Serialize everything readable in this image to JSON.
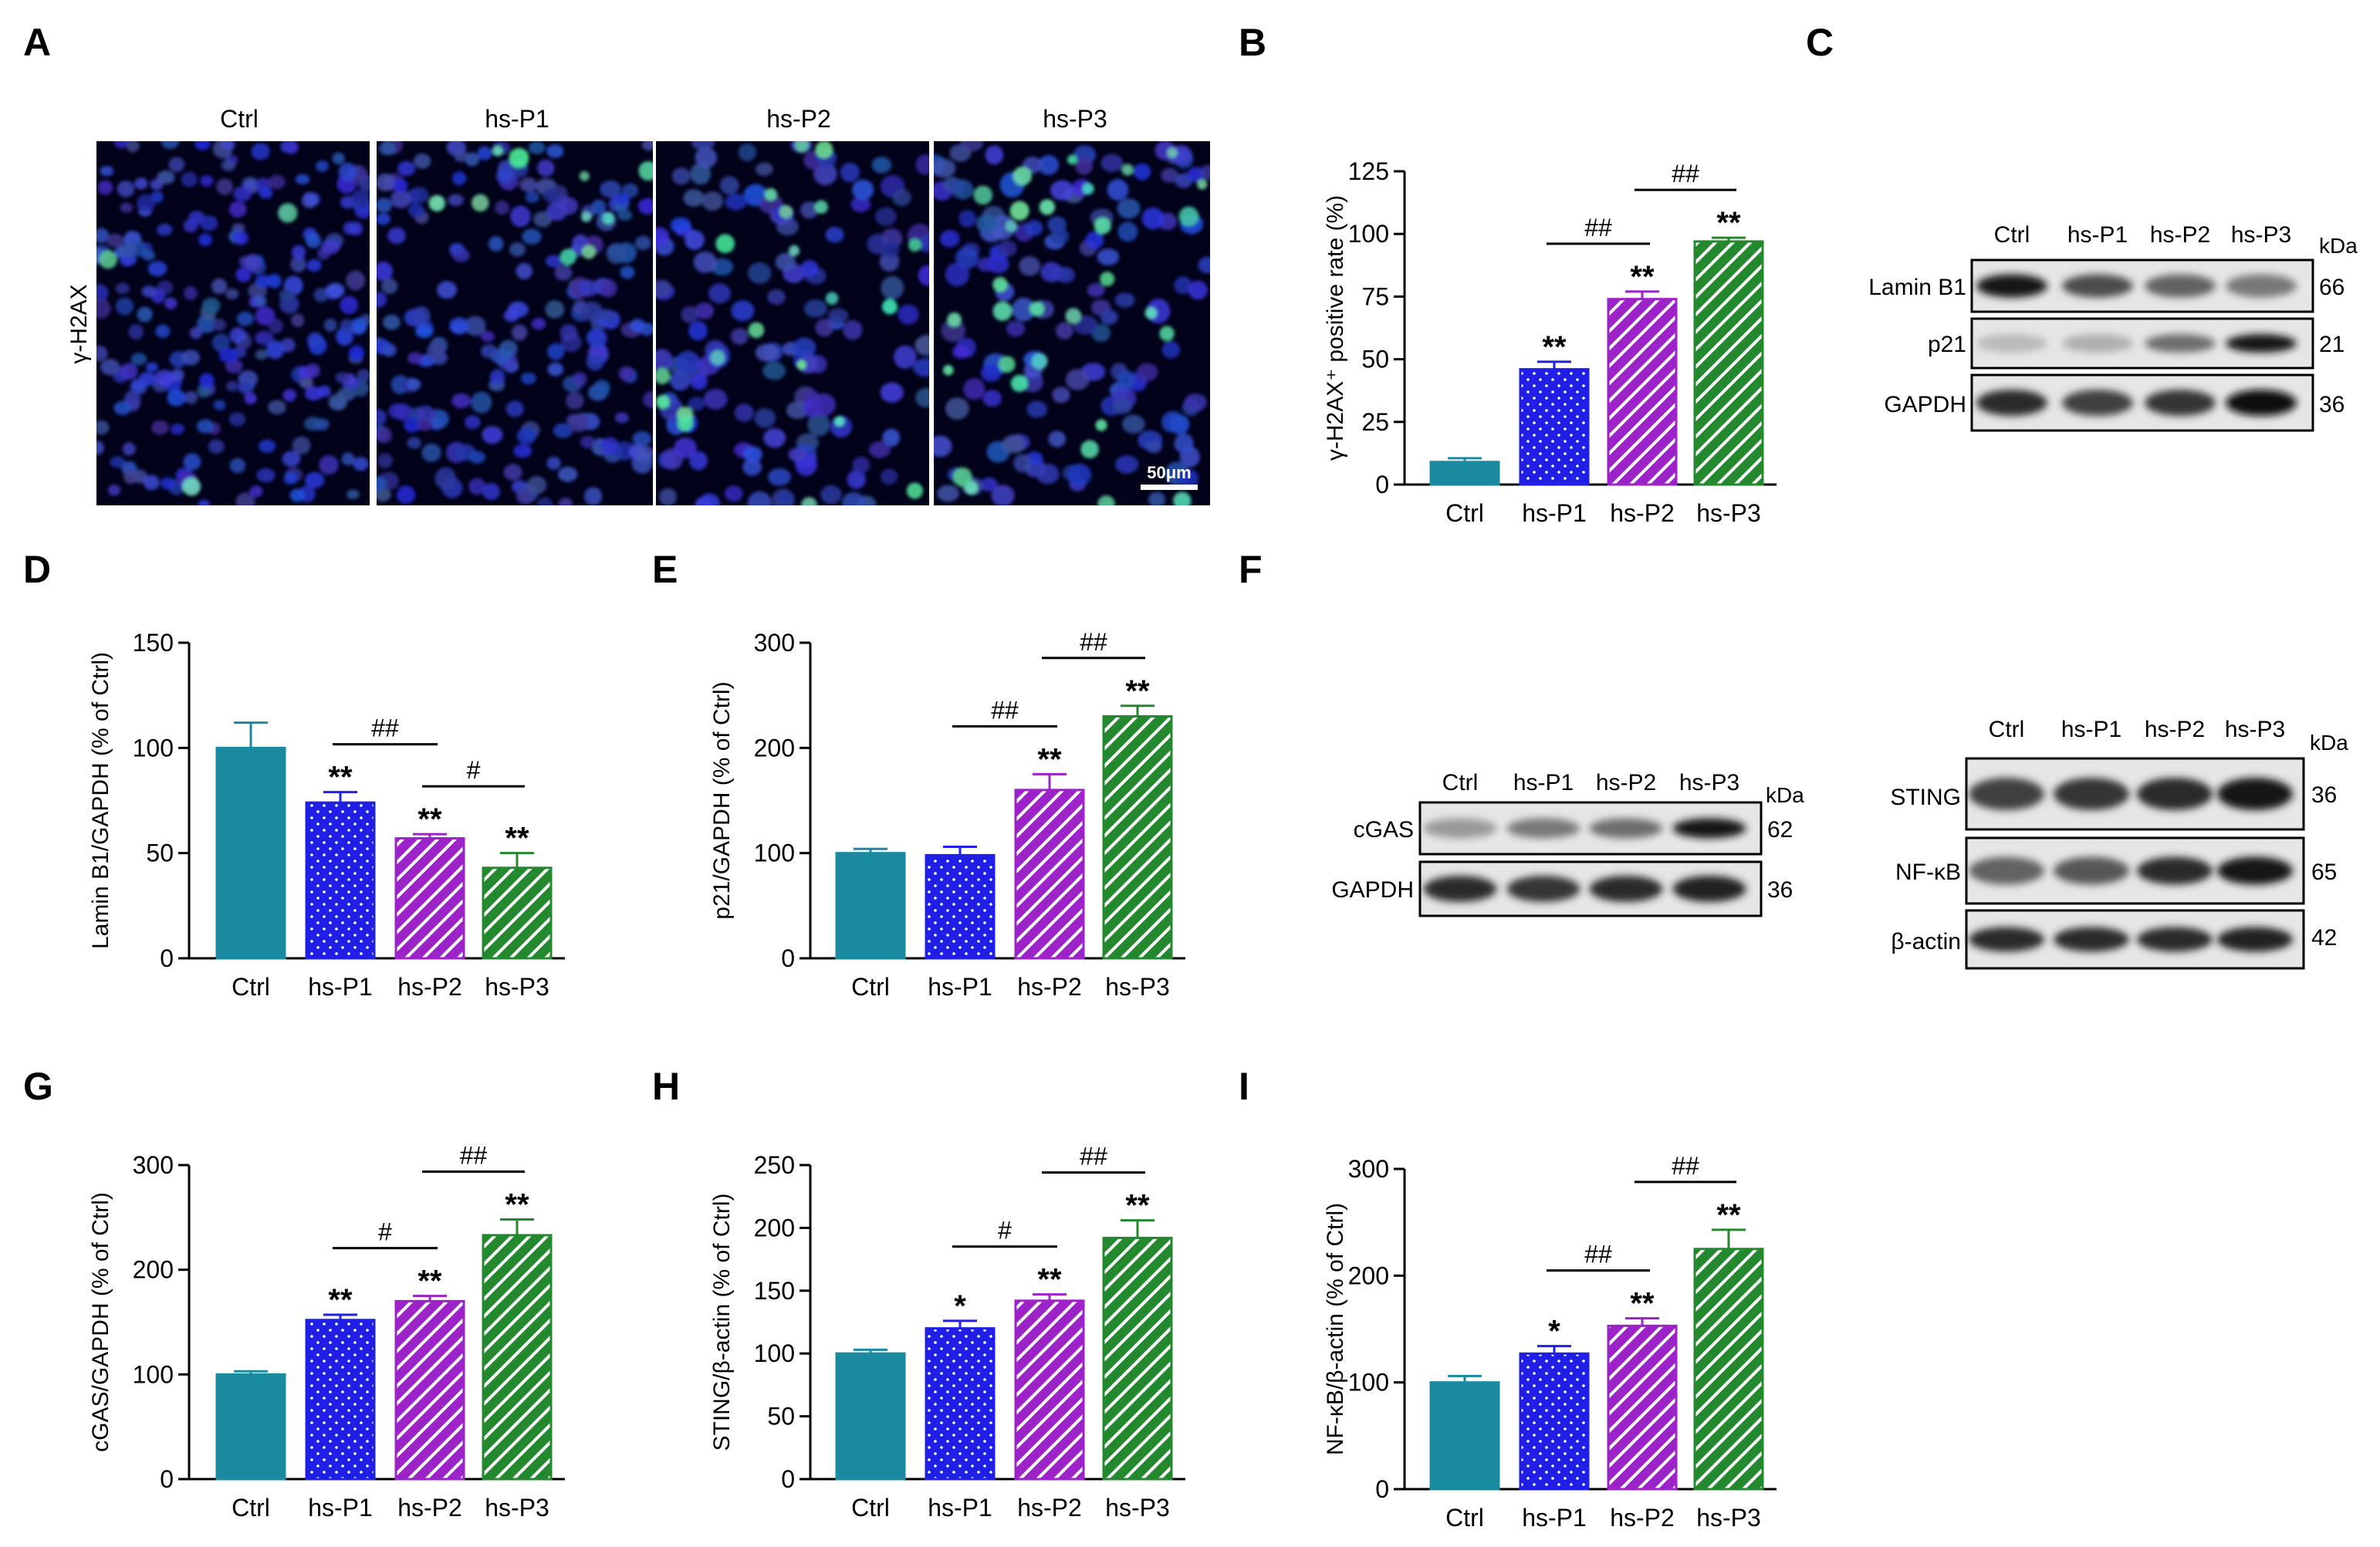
{
  "figure_title": "",
  "panels": {
    "A": {
      "letter": "A",
      "row_label": "γ-H2AX",
      "columns": [
        "Ctrl",
        "hs-P1",
        "hs-P2",
        "hs-P3"
      ],
      "scale_bar": "50μm"
    },
    "C": {
      "letter": "C",
      "lanes": [
        "Ctrl",
        "hs-P1",
        "hs-P2",
        "hs-P3"
      ],
      "kda_label": "kDa",
      "bands": [
        {
          "name": "Lamin B1",
          "kda": "66",
          "intensity": [
            0.95,
            0.7,
            0.6,
            0.5
          ]
        },
        {
          "name": "p21",
          "kda": "21",
          "intensity": [
            0.2,
            0.25,
            0.55,
            0.95
          ]
        },
        {
          "name": "GAPDH",
          "kda": "36",
          "intensity": [
            0.85,
            0.75,
            0.8,
            1.0
          ]
        }
      ]
    },
    "F": {
      "letter": "F",
      "left": {
        "lanes": [
          "Ctrl",
          "hs-P1",
          "hs-P2",
          "hs-P3"
        ],
        "kda_label": "kDa",
        "bands": [
          {
            "name": "cGAS",
            "kda": "62",
            "intensity": [
              0.35,
              0.5,
              0.55,
              0.95
            ]
          },
          {
            "name": "GAPDH",
            "kda": "36",
            "intensity": [
              0.85,
              0.8,
              0.85,
              0.9
            ]
          }
        ]
      },
      "right": {
        "lanes": [
          "Ctrl",
          "hs-P1",
          "hs-P2",
          "hs-P3"
        ],
        "kda_label": "kDa",
        "bands": [
          {
            "name": "STING",
            "kda": "36",
            "intensity": [
              0.75,
              0.8,
              0.85,
              0.95
            ]
          },
          {
            "name": "NF-κB",
            "kda": "65",
            "intensity": [
              0.6,
              0.65,
              0.85,
              0.95
            ]
          },
          {
            "name": "β-actin",
            "kda": "42",
            "intensity": [
              0.85,
              0.85,
              0.85,
              0.9
            ]
          }
        ]
      }
    }
  },
  "colors": {
    "ctrl": "#1a8aa0",
    "p1": "#1f1fe6",
    "p2": "#9b23c8",
    "p3": "#23882e",
    "axis": "#000000"
  },
  "chart_data": [
    {
      "id": "B",
      "letter": "B",
      "type": "bar",
      "categories": [
        "Ctrl",
        "hs-P1",
        "hs-P2",
        "hs-P3"
      ],
      "values": [
        9,
        46,
        74,
        97
      ],
      "errors": [
        1.5,
        3,
        3,
        1.5
      ],
      "ylabel": "γ-H2AX⁺ positive rate (%)",
      "ylim": [
        0,
        125
      ],
      "yticks": [
        0,
        25,
        50,
        75,
        100,
        125
      ],
      "stars": [
        "",
        "**",
        "**",
        "**"
      ],
      "brackets": [
        {
          "from": 1,
          "to": 2,
          "label": "##"
        },
        {
          "from": 2,
          "to": 3,
          "label": "##"
        }
      ]
    },
    {
      "id": "D",
      "letter": "D",
      "type": "bar",
      "categories": [
        "Ctrl",
        "hs-P1",
        "hs-P2",
        "hs-P3"
      ],
      "values": [
        100,
        74,
        57,
        43
      ],
      "errors": [
        12,
        5,
        2,
        7
      ],
      "ylabel": "Lamin B1/GAPDH (% of Ctrl)",
      "ylim": [
        0,
        150
      ],
      "yticks": [
        0,
        50,
        100,
        150
      ],
      "stars": [
        "",
        "**",
        "**",
        "**"
      ],
      "brackets": [
        {
          "from": 1,
          "to": 2,
          "label": "##"
        },
        {
          "from": 2,
          "to": 3,
          "label": "#"
        }
      ]
    },
    {
      "id": "E",
      "letter": "E",
      "type": "bar",
      "categories": [
        "Ctrl",
        "hs-P1",
        "hs-P2",
        "hs-P3"
      ],
      "values": [
        100,
        98,
        160,
        230
      ],
      "errors": [
        4,
        8,
        15,
        10
      ],
      "ylabel": "p21/GAPDH (% of Ctrl)",
      "ylim": [
        0,
        300
      ],
      "yticks": [
        0,
        100,
        200,
        300
      ],
      "stars": [
        "",
        "",
        "**",
        "**"
      ],
      "brackets": [
        {
          "from": 1,
          "to": 2,
          "label": "##"
        },
        {
          "from": 2,
          "to": 3,
          "label": "##"
        }
      ]
    },
    {
      "id": "G",
      "letter": "G",
      "type": "bar",
      "categories": [
        "Ctrl",
        "hs-P1",
        "hs-P2",
        "hs-P3"
      ],
      "values": [
        100,
        152,
        170,
        233
      ],
      "errors": [
        3,
        5,
        5,
        15
      ],
      "ylabel": "cGAS/GAPDH (% of Ctrl)",
      "ylim": [
        0,
        300
      ],
      "yticks": [
        0,
        100,
        200,
        300
      ],
      "stars": [
        "",
        "**",
        "**",
        "**"
      ],
      "brackets": [
        {
          "from": 1,
          "to": 2,
          "label": "#"
        },
        {
          "from": 2,
          "to": 3,
          "label": "##"
        }
      ]
    },
    {
      "id": "H",
      "letter": "H",
      "type": "bar",
      "categories": [
        "Ctrl",
        "hs-P1",
        "hs-P2",
        "hs-P3"
      ],
      "values": [
        100,
        120,
        142,
        192
      ],
      "errors": [
        3,
        6,
        5,
        14
      ],
      "ylabel": "STING/β-actin (% of Ctrl)",
      "ylim": [
        0,
        250
      ],
      "yticks": [
        0,
        50,
        100,
        150,
        200,
        250
      ],
      "stars": [
        "",
        "*",
        "**",
        "**"
      ],
      "brackets": [
        {
          "from": 1,
          "to": 2,
          "label": "#"
        },
        {
          "from": 2,
          "to": 3,
          "label": "##"
        }
      ]
    },
    {
      "id": "I",
      "letter": "I",
      "type": "bar",
      "categories": [
        "Ctrl",
        "hs-P1",
        "hs-P2",
        "hs-P3"
      ],
      "values": [
        100,
        127,
        153,
        225
      ],
      "errors": [
        6,
        7,
        7,
        18
      ],
      "ylabel": "NF-κB/β-actin (% of Ctrl)",
      "ylim": [
        0,
        300
      ],
      "yticks": [
        0,
        100,
        200,
        300
      ],
      "stars": [
        "",
        "*",
        "**",
        "**"
      ],
      "brackets": [
        {
          "from": 1,
          "to": 2,
          "label": "##"
        },
        {
          "from": 2,
          "to": 3,
          "label": "##"
        }
      ]
    }
  ]
}
